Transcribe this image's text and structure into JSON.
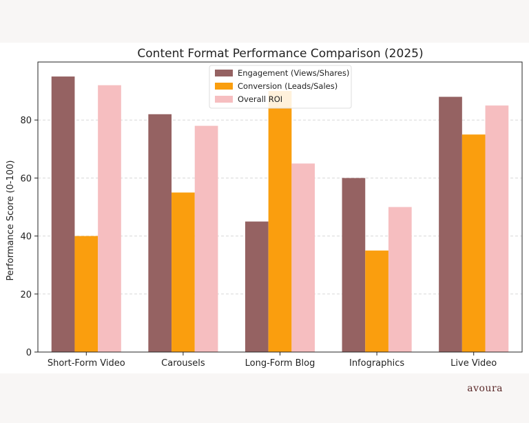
{
  "brand": "avoura",
  "chart_data": {
    "type": "bar",
    "title": "Content Format Performance Comparison (2025)",
    "xlabel": "",
    "ylabel": "Performance Score (0-100)",
    "ylim": [
      0,
      100
    ],
    "yticks": [
      0,
      20,
      40,
      60,
      80
    ],
    "grid": "horizontal-dashed",
    "legend_position": "top-center",
    "categories": [
      "Short-Form Video",
      "Carousels",
      "Long-Form Blog",
      "Infographics",
      "Live Video"
    ],
    "series": [
      {
        "name": "Engagement (Views/Shares)",
        "color": "#956262",
        "values": [
          95,
          82,
          45,
          60,
          88
        ]
      },
      {
        "name": "Conversion (Leads/Sales)",
        "color": "#fa9e0e",
        "values": [
          40,
          55,
          90,
          35,
          75
        ]
      },
      {
        "name": "Overall ROI",
        "color": "#f6bec0",
        "values": [
          92,
          78,
          65,
          50,
          85
        ]
      }
    ]
  }
}
